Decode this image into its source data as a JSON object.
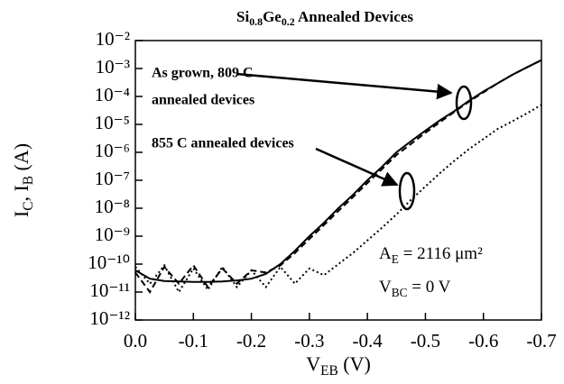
{
  "chart_data": {
    "type": "line",
    "title": [
      "Si",
      "0.8",
      "Ge",
      "0.2",
      " Annealed Devices"
    ],
    "x_label": [
      "V",
      "EB",
      " (V)"
    ],
    "y_label": [
      "I",
      "C",
      ", I",
      "B",
      " (A)"
    ],
    "annotations": {
      "grown_1": "As grown, 809 C",
      "grown_2": "annealed devices",
      "annealed": "855 C annealed devices",
      "area": [
        "A",
        "E",
        " = 2116 μm²"
      ],
      "bias": [
        "V",
        "BC",
        " = 0 V"
      ]
    },
    "log_y": true,
    "xlim": [
      0,
      -0.7
    ],
    "xticks": [
      {
        "value": 0,
        "label": "0.0"
      },
      -0.1,
      -0.2,
      -0.3,
      -0.4,
      -0.5,
      -0.6,
      -0.7
    ],
    "ylim": [
      1e-12,
      0.01
    ],
    "yticks": [
      {
        "value": 0.01,
        "label": "10⁻²"
      },
      {
        "value": 0.001,
        "label": "10⁻³"
      },
      {
        "value": 0.0001,
        "label": "10⁻⁴"
      },
      {
        "value": 1e-05,
        "label": "10⁻⁵"
      },
      {
        "value": 1e-06,
        "label": "10⁻⁶"
      },
      {
        "value": 1e-07,
        "label": "10⁻⁷"
      },
      {
        "value": 1e-08,
        "label": "10⁻⁸"
      },
      {
        "value": 1e-09,
        "label": "10⁻⁹"
      },
      {
        "value": 1e-10,
        "label": "10⁻¹⁰"
      },
      {
        "value": 1e-11,
        "label": "10⁻¹¹"
      },
      {
        "value": 1e-12,
        "label": "10⁻¹²"
      }
    ],
    "x": [
      0,
      -0.025,
      -0.05,
      -0.075,
      -0.1,
      -0.125,
      -0.15,
      -0.175,
      -0.2,
      -0.225,
      -0.25,
      -0.275,
      -0.3,
      -0.325,
      -0.35,
      -0.375,
      -0.4,
      -0.425,
      -0.45,
      -0.475,
      -0.5,
      -0.525,
      -0.55,
      -0.575,
      -0.6,
      -0.625,
      -0.65,
      -0.675,
      -0.7
    ],
    "series": [
      {
        "color": "#000000",
        "style": "solid",
        "values": [
          6e-11,
          3e-11,
          2.5e-11,
          2.4e-11,
          2.3e-11,
          2.3e-11,
          2.4e-11,
          2.6e-11,
          3e-11,
          4.5e-11,
          1e-10,
          3e-10,
          1e-09,
          3e-09,
          1e-08,
          3e-08,
          1e-07,
          3e-07,
          1e-06,
          2.5e-06,
          6e-06,
          1.4e-05,
          3e-05,
          7e-05,
          0.00015,
          0.0003,
          0.0006,
          0.0011,
          0.002
        ]
      },
      {
        "color": "#000000",
        "style": "dashed",
        "values": [
          5e-11,
          1e-11,
          8e-11,
          2e-11,
          9e-11,
          1.5e-11,
          7e-11,
          2e-11,
          6e-11,
          5e-11,
          9e-11,
          2.5e-10,
          8e-10,
          2.5e-09,
          8e-09,
          2.5e-08,
          8e-08,
          2.5e-07,
          8e-07,
          2e-06,
          5e-06,
          1.2e-05,
          2.8e-05,
          6.5e-05,
          0.00014,
          0.0003,
          0.0006,
          0.0011,
          0.002
        ]
      },
      {
        "color": "#000000",
        "style": "dotted",
        "values": [
          8e-11,
          2e-11,
          9e-11,
          1e-11,
          7e-11,
          1.2e-11,
          8e-11,
          1.5e-11,
          6e-11,
          1.5e-11,
          8e-11,
          2e-11,
          7e-11,
          4e-11,
          1e-10,
          2.5e-10,
          7e-10,
          2e-09,
          6e-09,
          2e-08,
          6e-08,
          1.8e-07,
          5e-07,
          1.3e-06,
          3e-06,
          7e-06,
          1.3e-05,
          2.5e-05,
          5e-05
        ]
      }
    ]
  }
}
